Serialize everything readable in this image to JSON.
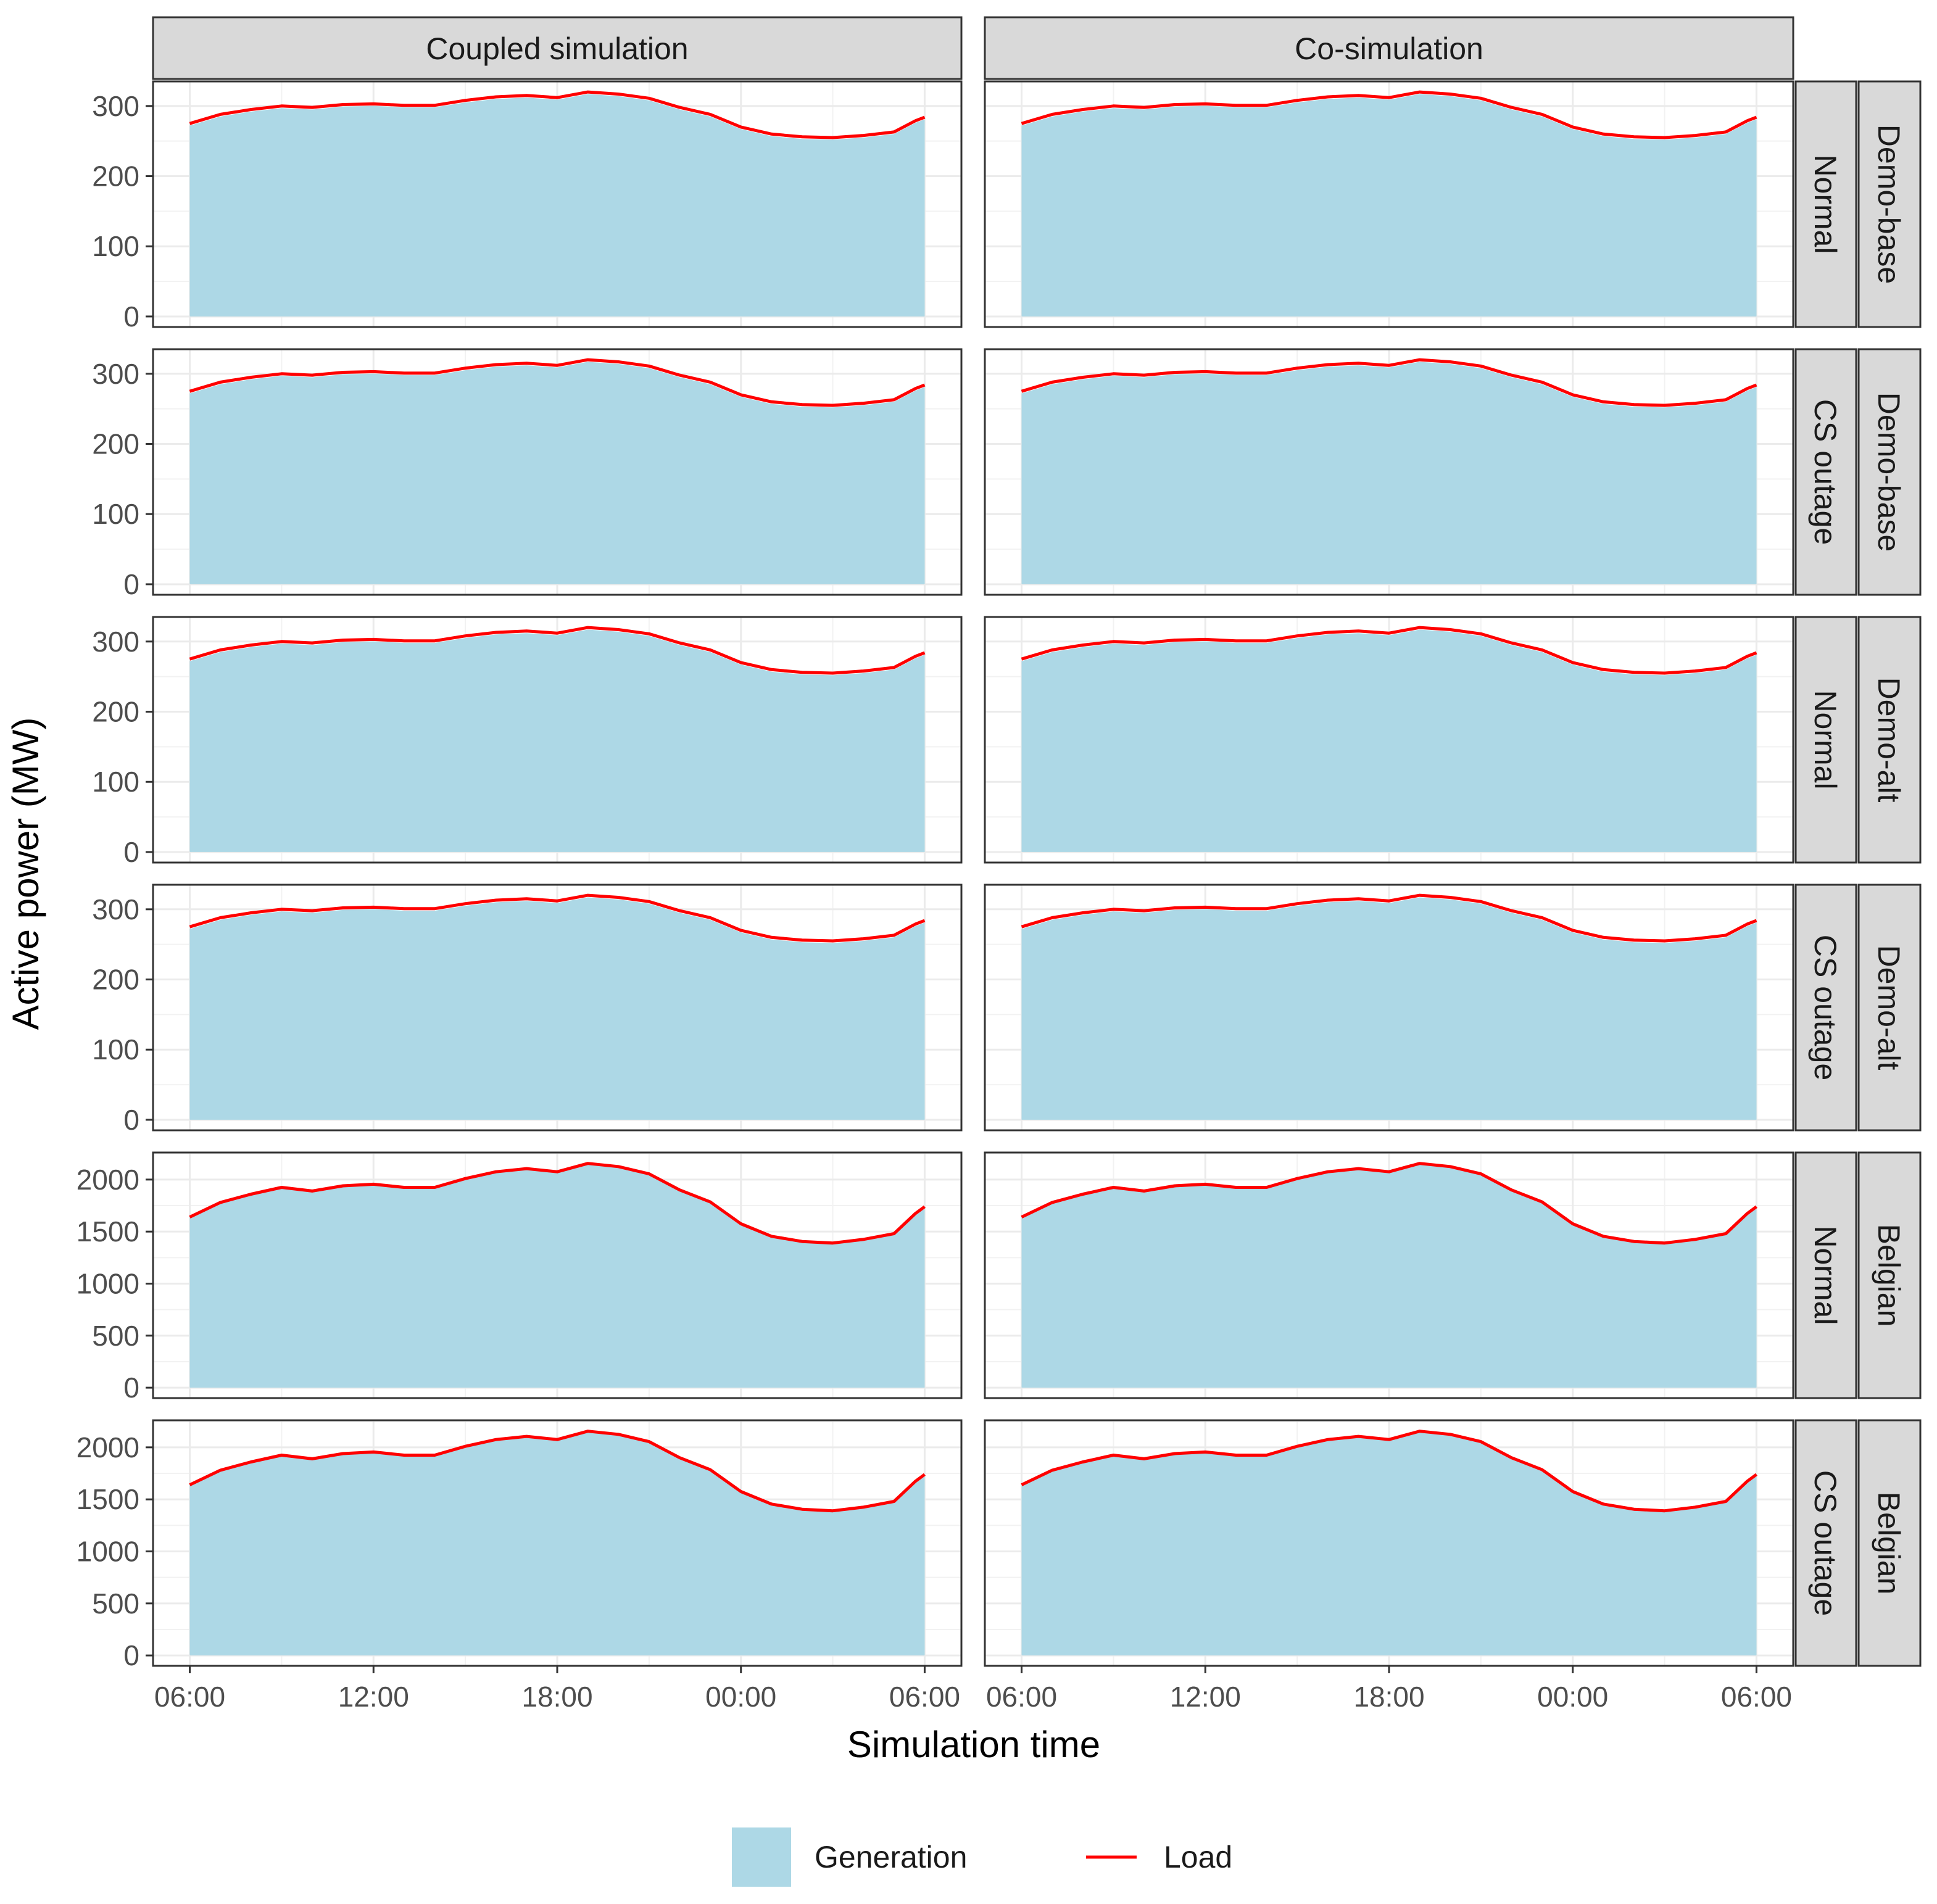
{
  "chart_data": {
    "type": "area",
    "title": "",
    "xlabel": "Simulation time",
    "ylabel": "Active power (MW)",
    "column_facets": [
      "Coupled simulation",
      "Co-simulation"
    ],
    "row_facets": [
      {
        "case": "Demo-base",
        "scenario": "Normal",
        "yticks": [
          "0",
          "100",
          "200",
          "300"
        ],
        "ylim": [
          -15,
          335
        ]
      },
      {
        "case": "Demo-base",
        "scenario": "CS outage",
        "yticks": [
          "0",
          "100",
          "200",
          "300"
        ],
        "ylim": [
          -15,
          335
        ]
      },
      {
        "case": "Demo-alt",
        "scenario": "Normal",
        "yticks": [
          "0",
          "100",
          "200",
          "300"
        ],
        "ylim": [
          -15,
          335
        ]
      },
      {
        "case": "Demo-alt",
        "scenario": "CS outage",
        "yticks": [
          "0",
          "100",
          "200",
          "300"
        ],
        "ylim": [
          -15,
          335
        ]
      },
      {
        "case": "Belgian",
        "scenario": "Normal",
        "yticks": [
          "0",
          "500",
          "1000",
          "1500",
          "2000"
        ],
        "ylim": [
          -100,
          2260
        ]
      },
      {
        "case": "Belgian",
        "scenario": "CS outage",
        "yticks": [
          "0",
          "500",
          "1000",
          "1500",
          "2000"
        ],
        "ylim": [
          -100,
          2260
        ]
      }
    ],
    "x_hours": [
      6,
      7,
      8,
      9,
      10,
      11,
      12,
      13,
      14,
      15,
      16,
      17,
      18,
      19,
      20,
      21,
      22,
      23,
      24,
      25,
      26,
      27,
      28,
      29,
      29.7,
      30
    ],
    "xticks": [
      "06:00",
      "12:00",
      "18:00",
      "00:00",
      "06:00"
    ],
    "xtick_hours": [
      6,
      12,
      18,
      24,
      30
    ],
    "xlim_hours": [
      4.8,
      31.2
    ],
    "series": [
      {
        "name": "Generation",
        "kind": "area",
        "color": "#add8e6",
        "values_demo": [
          272,
          285,
          292,
          297,
          295,
          299,
          300,
          298,
          298,
          305,
          310,
          312,
          309,
          317,
          314,
          308,
          295,
          285,
          267,
          257,
          253,
          252,
          255,
          260,
          276,
          281
        ],
        "values_belgian": [
          1635,
          1775,
          1855,
          1920,
          1885,
          1935,
          1950,
          1920,
          1920,
          2005,
          2070,
          2100,
          2070,
          2150,
          2120,
          2050,
          1895,
          1780,
          1570,
          1450,
          1400,
          1385,
          1420,
          1475,
          1670,
          1720
        ]
      },
      {
        "name": "Load",
        "kind": "line",
        "color": "#ff0000",
        "values_demo": [
          275,
          288,
          295,
          300,
          298,
          302,
          303,
          301,
          301,
          308,
          313,
          315,
          312,
          320,
          317,
          311,
          298,
          288,
          270,
          260,
          256,
          255,
          258,
          263,
          279,
          284
        ],
        "values_belgian": [
          1640,
          1780,
          1860,
          1925,
          1890,
          1940,
          1955,
          1925,
          1925,
          2010,
          2075,
          2105,
          2075,
          2155,
          2125,
          2055,
          1900,
          1785,
          1575,
          1455,
          1405,
          1390,
          1425,
          1480,
          1675,
          1740
        ]
      }
    ],
    "legend": {
      "position": "bottom",
      "entries": [
        "Generation",
        "Load"
      ]
    },
    "grid": true
  }
}
